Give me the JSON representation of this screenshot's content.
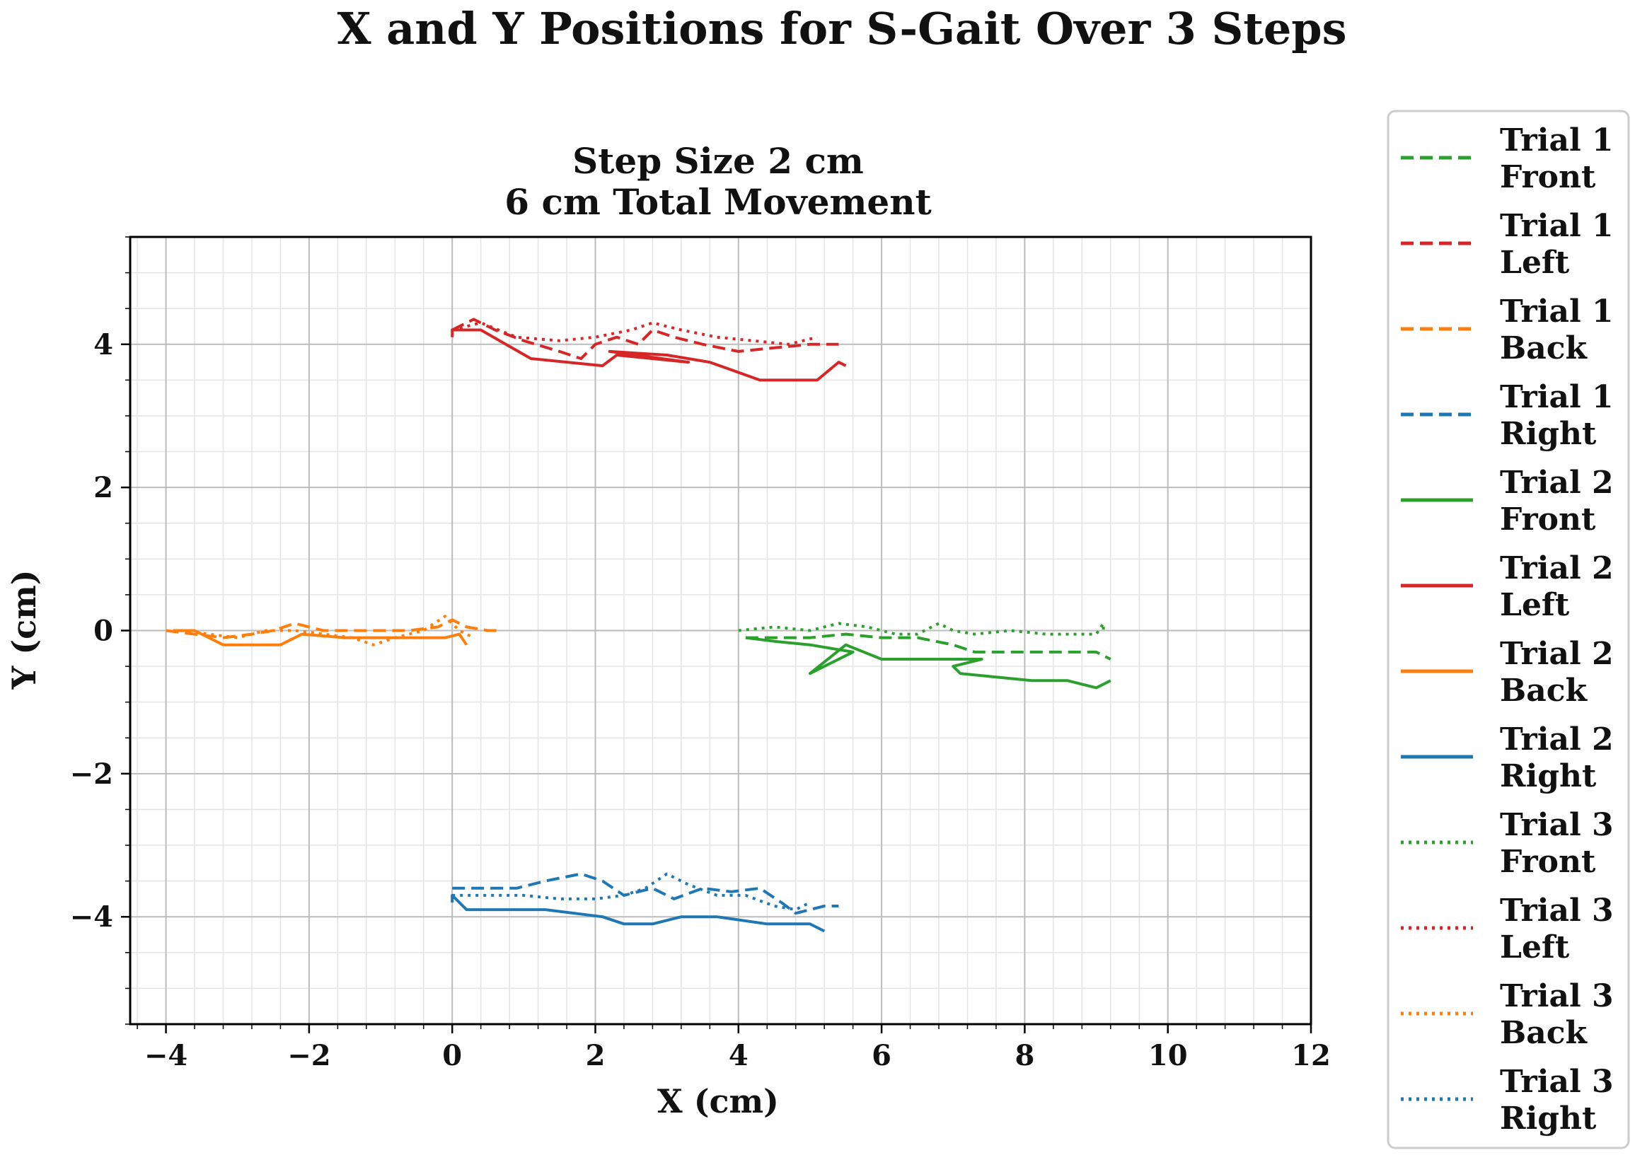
{
  "chart_data": {
    "type": "line",
    "suptitle": "X and Y Positions for S-Gait Over 3 Steps",
    "title_line1": "Step Size 2 cm",
    "title_line2": "6 cm Total Movement",
    "xlabel": "X (cm)",
    "ylabel": "Y (cm)",
    "xlim": [
      -4.5,
      12
    ],
    "ylim": [
      -5.5,
      5.5
    ],
    "xticks": [
      -4,
      -2,
      0,
      2,
      4,
      6,
      8,
      10,
      12
    ],
    "xtick_labels": [
      "−4",
      "−2",
      "0",
      "2",
      "4",
      "6",
      "8",
      "10",
      "12"
    ],
    "yticks": [
      -4,
      -2,
      0,
      2,
      4
    ],
    "ytick_labels": [
      "−4",
      "−2",
      "0",
      "2",
      "4"
    ],
    "grid": true,
    "minor_grid": true,
    "legend_position": "outside-right",
    "series": [
      {
        "name_line1": "Trial 1",
        "name_line2": "Front",
        "color": "#2ca02c",
        "style": "dashed",
        "points": [
          [
            4.1,
            -0.1
          ],
          [
            4.6,
            -0.1
          ],
          [
            5.0,
            -0.1
          ],
          [
            5.5,
            -0.05
          ],
          [
            6.0,
            -0.1
          ],
          [
            6.5,
            -0.1
          ],
          [
            7.0,
            -0.2
          ],
          [
            7.3,
            -0.3
          ],
          [
            7.6,
            -0.3
          ],
          [
            8.0,
            -0.3
          ],
          [
            8.5,
            -0.3
          ],
          [
            9.0,
            -0.3
          ],
          [
            9.2,
            -0.4
          ]
        ]
      },
      {
        "name_line1": "Trial 1",
        "name_line2": "Left",
        "color": "#d62728",
        "style": "dashed",
        "points": [
          [
            0.0,
            4.2
          ],
          [
            0.3,
            4.35
          ],
          [
            0.6,
            4.2
          ],
          [
            1.0,
            4.05
          ],
          [
            1.5,
            3.9
          ],
          [
            1.8,
            3.8
          ],
          [
            2.0,
            4.0
          ],
          [
            2.3,
            4.1
          ],
          [
            2.6,
            4.0
          ],
          [
            2.8,
            4.2
          ],
          [
            3.1,
            4.1
          ],
          [
            3.5,
            4.0
          ],
          [
            4.0,
            3.9
          ],
          [
            4.5,
            3.95
          ],
          [
            5.0,
            4.0
          ],
          [
            5.4,
            4.0
          ]
        ]
      },
      {
        "name_line1": "Trial 1",
        "name_line2": "Back",
        "color": "#ff7f0e",
        "style": "dashed",
        "points": [
          [
            -4.0,
            0.0
          ],
          [
            -3.6,
            -0.05
          ],
          [
            -3.2,
            -0.1
          ],
          [
            -2.8,
            -0.05
          ],
          [
            -2.5,
            0.0
          ],
          [
            -2.2,
            0.1
          ],
          [
            -1.8,
            0.0
          ],
          [
            -1.4,
            0.0
          ],
          [
            -1.0,
            0.0
          ],
          [
            -0.6,
            0.0
          ],
          [
            -0.2,
            0.05
          ],
          [
            0.0,
            0.15
          ],
          [
            0.2,
            0.05
          ],
          [
            0.5,
            0.0
          ],
          [
            0.7,
            0.0
          ]
        ]
      },
      {
        "name_line1": "Trial 1",
        "name_line2": "Right",
        "color": "#1f77b4",
        "style": "dashed",
        "points": [
          [
            0.0,
            -3.6
          ],
          [
            0.5,
            -3.6
          ],
          [
            0.9,
            -3.6
          ],
          [
            1.3,
            -3.5
          ],
          [
            1.8,
            -3.4
          ],
          [
            2.1,
            -3.5
          ],
          [
            2.4,
            -3.7
          ],
          [
            2.8,
            -3.6
          ],
          [
            3.1,
            -3.75
          ],
          [
            3.5,
            -3.6
          ],
          [
            3.9,
            -3.65
          ],
          [
            4.3,
            -3.6
          ],
          [
            4.6,
            -3.8
          ],
          [
            4.8,
            -3.95
          ],
          [
            5.2,
            -3.85
          ],
          [
            5.4,
            -3.85
          ]
        ]
      },
      {
        "name_line1": "Trial 2",
        "name_line2": "Front",
        "color": "#2ca02c",
        "style": "solid",
        "points": [
          [
            4.1,
            -0.1
          ],
          [
            4.5,
            -0.15
          ],
          [
            5.0,
            -0.2
          ],
          [
            5.6,
            -0.3
          ],
          [
            5.0,
            -0.6
          ],
          [
            5.5,
            -0.2
          ],
          [
            6.0,
            -0.4
          ],
          [
            6.5,
            -0.4
          ],
          [
            7.0,
            -0.4
          ],
          [
            7.4,
            -0.4
          ],
          [
            7.0,
            -0.5
          ],
          [
            7.1,
            -0.6
          ],
          [
            7.6,
            -0.65
          ],
          [
            8.1,
            -0.7
          ],
          [
            8.6,
            -0.7
          ],
          [
            9.0,
            -0.8
          ],
          [
            9.2,
            -0.7
          ]
        ]
      },
      {
        "name_line1": "Trial 2",
        "name_line2": "Left",
        "color": "#d62728",
        "style": "solid",
        "points": [
          [
            0.0,
            4.1
          ],
          [
            0.0,
            4.2
          ],
          [
            0.4,
            4.2
          ],
          [
            1.1,
            3.8
          ],
          [
            2.1,
            3.7
          ],
          [
            2.3,
            3.85
          ],
          [
            3.3,
            3.75
          ],
          [
            2.2,
            3.9
          ],
          [
            3.0,
            3.85
          ],
          [
            3.6,
            3.75
          ],
          [
            4.3,
            3.5
          ],
          [
            5.1,
            3.5
          ],
          [
            5.4,
            3.75
          ],
          [
            5.5,
            3.7
          ]
        ]
      },
      {
        "name_line1": "Trial 2",
        "name_line2": "Back",
        "color": "#ff7f0e",
        "style": "solid",
        "points": [
          [
            -3.9,
            0.0
          ],
          [
            -3.6,
            0.0
          ],
          [
            -3.2,
            -0.2
          ],
          [
            -2.8,
            -0.2
          ],
          [
            -2.4,
            -0.2
          ],
          [
            -2.1,
            -0.05
          ],
          [
            -1.5,
            -0.1
          ],
          [
            -1.0,
            -0.1
          ],
          [
            -0.5,
            -0.1
          ],
          [
            -0.1,
            -0.1
          ],
          [
            0.1,
            -0.05
          ],
          [
            0.2,
            -0.2
          ]
        ]
      },
      {
        "name_line1": "Trial 2",
        "name_line2": "Right",
        "color": "#1f77b4",
        "style": "solid",
        "points": [
          [
            0.0,
            -3.8
          ],
          [
            0.0,
            -3.7
          ],
          [
            0.2,
            -3.9
          ],
          [
            1.3,
            -3.9
          ],
          [
            2.1,
            -4.0
          ],
          [
            2.4,
            -4.1
          ],
          [
            2.8,
            -4.1
          ],
          [
            3.2,
            -4.0
          ],
          [
            3.7,
            -4.0
          ],
          [
            4.4,
            -4.1
          ],
          [
            5.0,
            -4.1
          ],
          [
            5.2,
            -4.2
          ]
        ]
      },
      {
        "name_line1": "Trial 3",
        "name_line2": "Front",
        "color": "#2ca02c",
        "style": "dotted",
        "points": [
          [
            4.0,
            0.0
          ],
          [
            4.5,
            0.05
          ],
          [
            5.0,
            0.0
          ],
          [
            5.4,
            0.1
          ],
          [
            5.8,
            0.05
          ],
          [
            6.2,
            -0.05
          ],
          [
            6.5,
            -0.05
          ],
          [
            6.8,
            0.1
          ],
          [
            7.0,
            0.0
          ],
          [
            7.3,
            -0.05
          ],
          [
            7.8,
            0.0
          ],
          [
            8.3,
            -0.05
          ],
          [
            8.7,
            -0.05
          ],
          [
            9.0,
            -0.05
          ],
          [
            9.1,
            0.1
          ],
          [
            9.1,
            -0.05
          ]
        ]
      },
      {
        "name_line1": "Trial 3",
        "name_line2": "Left",
        "color": "#d62728",
        "style": "dotted",
        "points": [
          [
            0.0,
            4.2
          ],
          [
            0.4,
            4.3
          ],
          [
            0.9,
            4.1
          ],
          [
            1.5,
            4.05
          ],
          [
            2.0,
            4.1
          ],
          [
            2.5,
            4.2
          ],
          [
            2.8,
            4.3
          ],
          [
            3.2,
            4.2
          ],
          [
            3.7,
            4.1
          ],
          [
            4.2,
            4.05
          ],
          [
            4.7,
            4.0
          ],
          [
            5.1,
            4.1
          ]
        ]
      },
      {
        "name_line1": "Trial 3",
        "name_line2": "Back",
        "color": "#ff7f0e",
        "style": "dotted",
        "points": [
          [
            -3.8,
            0.0
          ],
          [
            -3.4,
            -0.05
          ],
          [
            -3.0,
            -0.1
          ],
          [
            -2.6,
            0.0
          ],
          [
            -2.2,
            0.0
          ],
          [
            -1.8,
            -0.05
          ],
          [
            -1.4,
            -0.1
          ],
          [
            -1.1,
            -0.2
          ],
          [
            -0.8,
            -0.1
          ],
          [
            -0.4,
            0.0
          ],
          [
            -0.1,
            0.2
          ],
          [
            0.1,
            0.0
          ],
          [
            0.3,
            -0.1
          ]
        ]
      },
      {
        "name_line1": "Trial 3",
        "name_line2": "Right",
        "color": "#1f77b4",
        "style": "dotted",
        "points": [
          [
            0.0,
            -3.7
          ],
          [
            0.5,
            -3.7
          ],
          [
            1.0,
            -3.7
          ],
          [
            1.5,
            -3.75
          ],
          [
            2.0,
            -3.75
          ],
          [
            2.4,
            -3.7
          ],
          [
            2.7,
            -3.6
          ],
          [
            3.0,
            -3.4
          ],
          [
            3.3,
            -3.55
          ],
          [
            3.7,
            -3.7
          ],
          [
            4.1,
            -3.7
          ],
          [
            4.5,
            -3.85
          ],
          [
            4.8,
            -3.9
          ],
          [
            5.0,
            -3.8
          ]
        ]
      }
    ]
  }
}
